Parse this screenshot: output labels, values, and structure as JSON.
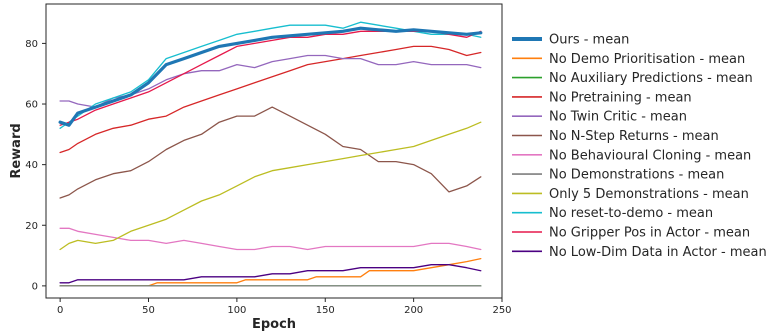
{
  "chart_data": {
    "type": "line",
    "xlabel": "Epoch",
    "ylabel": "Reward",
    "xlim": [
      -8,
      250
    ],
    "ylim": [
      -4,
      93
    ],
    "xticks": [
      0,
      50,
      100,
      150,
      200,
      250
    ],
    "yticks": [
      0,
      20,
      40,
      60,
      80
    ],
    "grid": false,
    "legend_position": "right",
    "series": [
      {
        "name": "Ours - mean",
        "color": "#1f77b4",
        "width": 3.2,
        "x": [
          0,
          5,
          10,
          20,
          30,
          40,
          50,
          60,
          70,
          80,
          90,
          100,
          110,
          120,
          130,
          140,
          150,
          160,
          170,
          180,
          190,
          200,
          210,
          220,
          230,
          238
        ],
        "y": [
          54,
          53,
          57,
          59,
          61,
          63,
          67,
          73,
          75,
          77,
          79,
          80,
          81,
          82,
          82.5,
          83,
          83.5,
          84,
          85,
          84.5,
          84,
          84.5,
          84,
          83.5,
          83,
          83.5
        ]
      },
      {
        "name": "No Demo Prioritisation - mean",
        "color": "#ff7f0e",
        "width": 1.3,
        "x": [
          0,
          50,
          55,
          100,
          105,
          140,
          145,
          170,
          175,
          200,
          210,
          220,
          230,
          238
        ],
        "y": [
          0,
          0,
          1,
          1,
          2,
          2,
          3,
          3,
          5,
          5,
          6,
          7,
          8,
          9
        ]
      },
      {
        "name": "No Auxiliary Predictions - mean",
        "color": "#2ca02c",
        "width": 1.3,
        "x": [
          0,
          50,
          100,
          150,
          200,
          238
        ],
        "y": [
          0,
          0,
          0,
          0,
          0,
          0
        ]
      },
      {
        "name": "No Pretraining - mean",
        "color": "#d62728",
        "width": 1.3,
        "x": [
          0,
          5,
          10,
          20,
          30,
          40,
          50,
          60,
          70,
          80,
          90,
          100,
          110,
          120,
          130,
          140,
          150,
          160,
          170,
          180,
          190,
          200,
          210,
          220,
          230,
          238
        ],
        "y": [
          44,
          45,
          47,
          50,
          52,
          53,
          55,
          56,
          59,
          61,
          63,
          65,
          67,
          69,
          71,
          73,
          74,
          75,
          76,
          77,
          78,
          79,
          79,
          78,
          76,
          77
        ]
      },
      {
        "name": "No Twin Critic - mean",
        "color": "#9467bd",
        "width": 1.3,
        "x": [
          0,
          5,
          10,
          20,
          30,
          40,
          50,
          60,
          70,
          80,
          90,
          100,
          110,
          120,
          130,
          140,
          150,
          160,
          170,
          180,
          190,
          200,
          210,
          220,
          230,
          238
        ],
        "y": [
          61,
          61,
          60,
          59,
          62,
          63,
          65,
          68,
          70,
          71,
          71,
          73,
          72,
          74,
          75,
          76,
          76,
          75,
          75,
          73,
          73,
          74,
          73,
          73,
          73,
          72
        ]
      },
      {
        "name": "No N-Step Returns - mean",
        "color": "#8c564b",
        "width": 1.3,
        "x": [
          0,
          5,
          10,
          20,
          30,
          40,
          50,
          60,
          70,
          80,
          90,
          100,
          110,
          120,
          130,
          140,
          150,
          160,
          170,
          180,
          190,
          200,
          210,
          220,
          230,
          238
        ],
        "y": [
          29,
          30,
          32,
          35,
          37,
          38,
          41,
          45,
          48,
          50,
          54,
          56,
          56,
          59,
          56,
          53,
          50,
          46,
          45,
          41,
          41,
          40,
          37,
          31,
          33,
          36
        ]
      },
      {
        "name": "No Behavioural Cloning - mean",
        "color": "#e377c2",
        "width": 1.3,
        "x": [
          0,
          5,
          10,
          20,
          30,
          40,
          50,
          60,
          70,
          80,
          90,
          100,
          110,
          120,
          130,
          140,
          150,
          160,
          170,
          180,
          190,
          200,
          210,
          220,
          230,
          238
        ],
        "y": [
          19,
          19,
          18,
          17,
          16,
          15,
          15,
          14,
          15,
          14,
          13,
          12,
          12,
          13,
          13,
          12,
          13,
          13,
          13,
          13,
          13,
          13,
          14,
          14,
          13,
          12
        ]
      },
      {
        "name": "No Demonstrations - mean",
        "color": "#7f7f7f",
        "width": 1.3,
        "x": [
          0,
          50,
          100,
          150,
          200,
          238
        ],
        "y": [
          0,
          0,
          0,
          0,
          0,
          0
        ]
      },
      {
        "name": "Only 5 Demonstrations - mean",
        "color": "#bcbd22",
        "width": 1.3,
        "x": [
          0,
          5,
          10,
          20,
          30,
          40,
          50,
          60,
          70,
          80,
          90,
          100,
          110,
          120,
          130,
          140,
          150,
          160,
          170,
          180,
          190,
          200,
          210,
          220,
          230,
          238
        ],
        "y": [
          12,
          14,
          15,
          14,
          15,
          18,
          20,
          22,
          25,
          28,
          30,
          33,
          36,
          38,
          39,
          40,
          41,
          42,
          43,
          44,
          45,
          46,
          48,
          50,
          52,
          54
        ]
      },
      {
        "name": "No reset-to-demo - mean",
        "color": "#17becf",
        "width": 1.3,
        "x": [
          0,
          5,
          10,
          20,
          30,
          40,
          50,
          60,
          70,
          80,
          90,
          100,
          110,
          120,
          130,
          140,
          150,
          160,
          170,
          180,
          190,
          200,
          210,
          220,
          230,
          238
        ],
        "y": [
          52,
          54,
          56,
          60,
          62,
          64,
          68,
          75,
          77,
          79,
          81,
          83,
          84,
          85,
          86,
          86,
          86,
          85,
          87,
          86,
          85,
          84,
          83,
          83,
          83,
          82
        ]
      },
      {
        "name": "No Gripper Pos in Actor - mean",
        "color": "#e6194b",
        "width": 1.3,
        "x": [
          0,
          5,
          10,
          20,
          30,
          40,
          50,
          60,
          70,
          80,
          90,
          100,
          110,
          120,
          130,
          140,
          150,
          160,
          170,
          180,
          190,
          200,
          210,
          220,
          230,
          238
        ],
        "y": [
          53,
          54,
          55,
          58,
          60,
          62,
          64,
          67,
          70,
          73,
          76,
          79,
          80,
          81,
          82,
          82,
          83,
          83,
          84,
          84,
          84,
          84,
          84,
          83,
          82,
          84
        ]
      },
      {
        "name": "No Low-Dim Data in Actor - mean",
        "color": "#4b0082",
        "width": 1.3,
        "x": [
          0,
          5,
          10,
          20,
          30,
          40,
          50,
          60,
          70,
          80,
          90,
          100,
          110,
          120,
          130,
          140,
          150,
          160,
          170,
          180,
          190,
          200,
          210,
          220,
          230,
          238
        ],
        "y": [
          1,
          1,
          2,
          2,
          2,
          2,
          2,
          2,
          2,
          3,
          3,
          3,
          3,
          4,
          4,
          5,
          5,
          5,
          6,
          6,
          6,
          6,
          7,
          7,
          6,
          5
        ]
      }
    ]
  }
}
